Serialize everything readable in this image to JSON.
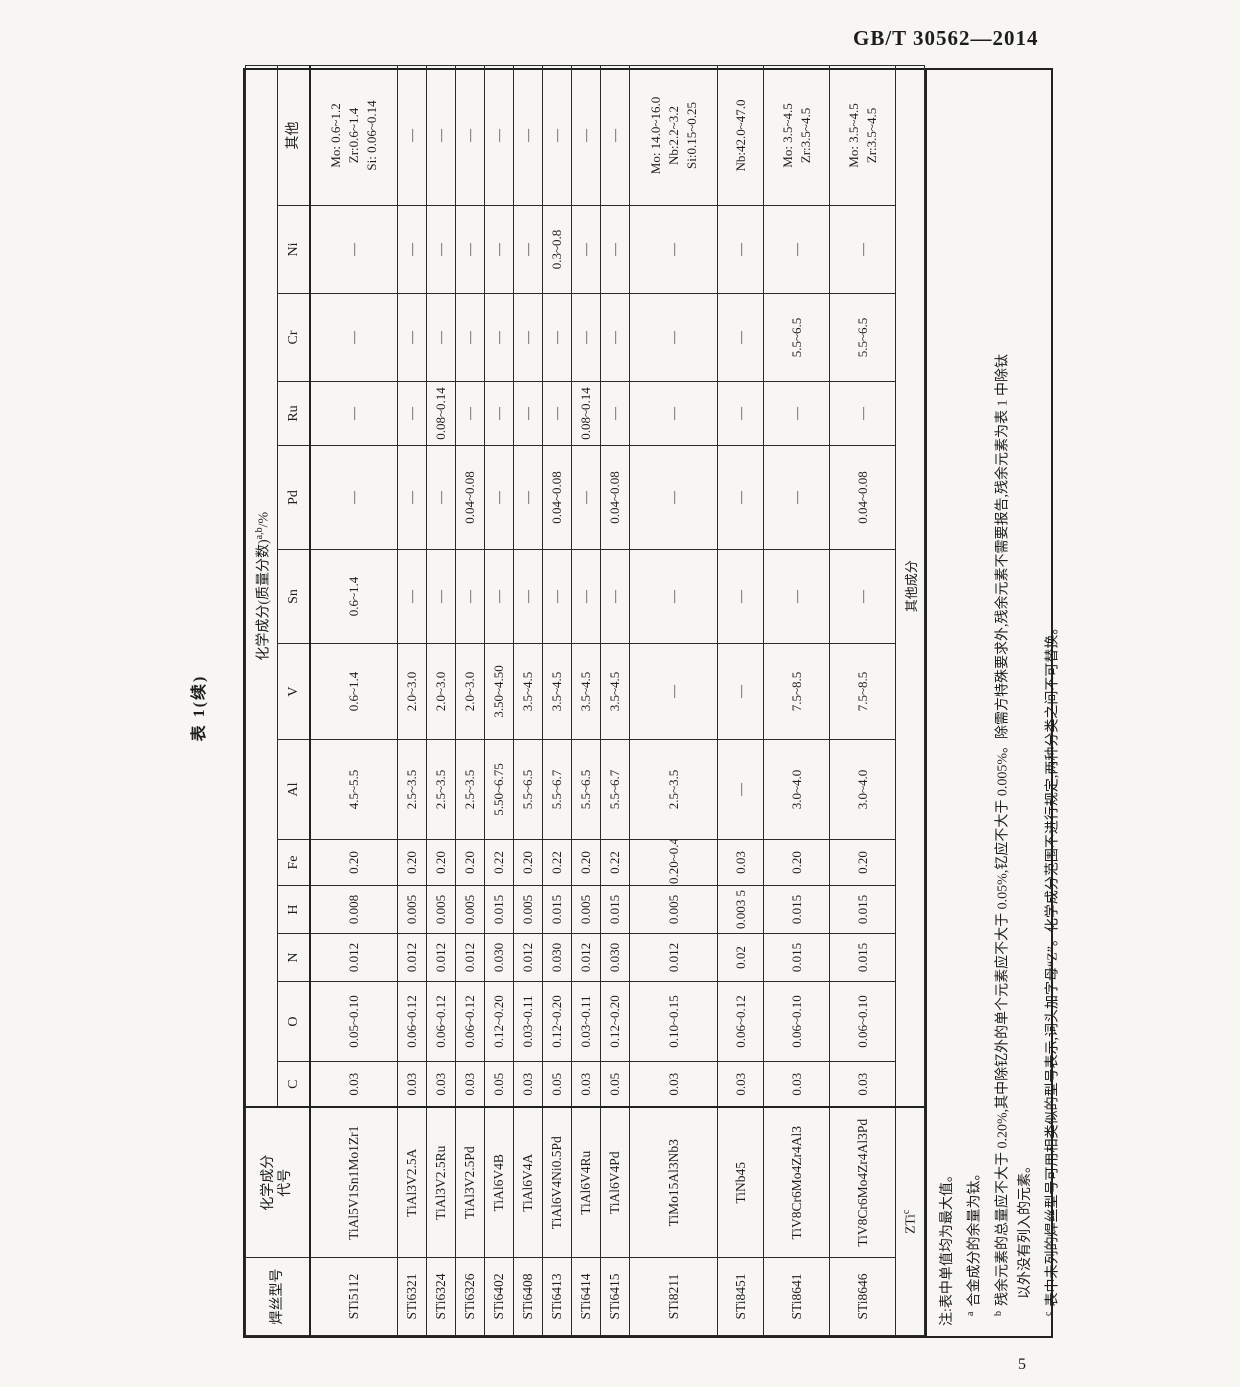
{
  "page": {
    "header_code": "GB/T 30562—2014",
    "table_caption": "表 1(续)",
    "page_number": "5"
  },
  "table": {
    "headers": {
      "wire_type": "焊丝型号",
      "designation_lines": [
        "化学成分",
        "代号"
      ],
      "composition": {
        "main": "化学成分(质量分数)",
        "sup": "a,b",
        "suffix": "/%"
      },
      "elements": [
        "C",
        "O",
        "N",
        "H",
        "Fe",
        "Al",
        "V",
        "Sn",
        "Pd",
        "Ru",
        "Cr",
        "Ni",
        "其他"
      ]
    },
    "rows": [
      {
        "code": "STi5112",
        "designation": "TiAl5V1Sn1Mo1Zr1",
        "values": [
          "0.03",
          "0.05~0.10",
          "0.012",
          "0.008",
          "0.20",
          "4.5~5.5",
          "0.6~1.4",
          "0.6~1.4",
          "—",
          "—",
          "—",
          "—",
          [
            "Mo: 0.6~1.2",
            "Zr:0.6~1.4",
            "Si: 0.06~0.14"
          ]
        ]
      },
      {
        "code": "STi6321",
        "designation": "TiAl3V2.5A",
        "values": [
          "0.03",
          "0.06~0.12",
          "0.012",
          "0.005",
          "0.20",
          "2.5~3.5",
          "2.0~3.0",
          "—",
          "—",
          "—",
          "—",
          "—",
          "—"
        ]
      },
      {
        "code": "STi6324",
        "designation": "TiAl3V2.5Ru",
        "values": [
          "0.03",
          "0.06~0.12",
          "0.012",
          "0.005",
          "0.20",
          "2.5~3.5",
          "2.0~3.0",
          "—",
          "—",
          "0.08~0.14",
          "—",
          "—",
          "—"
        ]
      },
      {
        "code": "STi6326",
        "designation": "TiAl3V2.5Pd",
        "values": [
          "0.03",
          "0.06~0.12",
          "0.012",
          "0.005",
          "0.20",
          "2.5~3.5",
          "2.0~3.0",
          "—",
          "0.04~0.08",
          "—",
          "—",
          "—",
          "—"
        ]
      },
      {
        "code": "STi6402",
        "designation": "TiAl6V4B",
        "values": [
          "0.05",
          "0.12~0.20",
          "0.030",
          "0.015",
          "0.22",
          "5.50~6.75",
          "3.50~4.50",
          "—",
          "—",
          "—",
          "—",
          "—",
          "—"
        ]
      },
      {
        "code": "STi6408",
        "designation": "TiAl6V4A",
        "values": [
          "0.03",
          "0.03~0.11",
          "0.012",
          "0.005",
          "0.20",
          "5.5~6.5",
          "3.5~4.5",
          "—",
          "—",
          "—",
          "—",
          "—",
          "—"
        ]
      },
      {
        "code": "STi6413",
        "designation": "TiAl6V4Ni0.5Pd",
        "values": [
          "0.05",
          "0.12~0.20",
          "0.030",
          "0.015",
          "0.22",
          "5.5~6.7",
          "3.5~4.5",
          "—",
          "0.04~0.08",
          "—",
          "—",
          "0.3~0.8",
          "—"
        ]
      },
      {
        "code": "STi6414",
        "designation": "TiAl6V4Ru",
        "values": [
          "0.03",
          "0.03~0.11",
          "0.012",
          "0.005",
          "0.20",
          "5.5~6.5",
          "3.5~4.5",
          "—",
          "—",
          "0.08~0.14",
          "—",
          "—",
          "—"
        ]
      },
      {
        "code": "STi6415",
        "designation": "TiAl6V4Pd",
        "values": [
          "0.05",
          "0.12~0.20",
          "0.030",
          "0.015",
          "0.22",
          "5.5~6.7",
          "3.5~4.5",
          "—",
          "0.04~0.08",
          "—",
          "—",
          "—",
          "—"
        ]
      },
      {
        "code": "STi8211",
        "designation": "TiMo15Al3Nb3",
        "values": [
          "0.03",
          "0.10~0.15",
          "0.012",
          "0.005",
          "0.20~0.40",
          "2.5~3.5",
          "—",
          "—",
          "—",
          "—",
          "—",
          "—",
          [
            "Mo: 14.0~16.0",
            "Nb:2.2~3.2",
            "Si:0.15~0.25"
          ]
        ]
      },
      {
        "code": "STi8451",
        "designation": "TiNb45",
        "values": [
          "0.03",
          "0.06~0.12",
          "0.02",
          "0.003 5",
          "0.03",
          "—",
          "—",
          "—",
          "—",
          "—",
          "—",
          "—",
          "Nb:42.0~47.0"
        ]
      },
      {
        "code": "STi8641",
        "designation": "TiV8Cr6Mo4Zr4Al3",
        "values": [
          "0.03",
          "0.06~0.10",
          "0.015",
          "0.015",
          "0.20",
          "3.0~4.0",
          "7.5~8.5",
          "—",
          "—",
          "—",
          "5.5~6.5",
          "—",
          [
            "Mo: 3.5~4.5",
            "Zr:3.5~4.5"
          ]
        ]
      },
      {
        "code": "STi8646",
        "designation": "TiV8Cr6Mo4Zr4Al3Pd",
        "values": [
          "0.03",
          "0.06~0.10",
          "0.015",
          "0.015",
          "0.20",
          "3.0~4.0",
          "7.5~8.5",
          "—",
          "0.04~0.08",
          "—",
          "5.5~6.5",
          "—",
          [
            "Mo: 3.5~4.5",
            "Zr:3.5~4.5"
          ]
        ]
      }
    ],
    "footer_row": {
      "code": {
        "main": "ZTi",
        "sup": "c"
      },
      "value": "其他成分"
    },
    "notes": [
      {
        "sup": "",
        "indent": 0,
        "text": "注:表中单值均为最大值。"
      },
      {
        "sup": "a",
        "indent": 1,
        "text": "合金成分的余量为钛。"
      },
      {
        "sup": "b",
        "indent": 1,
        "text": "残余元素的总量应不大于 0.20%,其中除钇外的单个元素应不大于 0.05%,钇应不大于 0.005%。除需方特殊要求外,残余元素不需要报告,残余元素为表 1 中除钛"
      },
      {
        "sup": "",
        "indent": 2,
        "text": "以外没有列入的元素。"
      },
      {
        "sup": "c",
        "indent": 1,
        "text": "表中未列的焊丝型号可用相类似的型号表示,词头加字母“Z”。化学成分范围不进行规定,两种分类之间不可替换。"
      }
    ]
  }
}
